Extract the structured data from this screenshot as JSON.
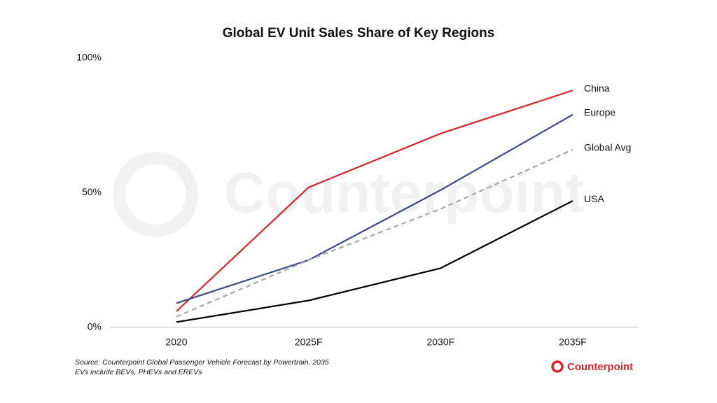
{
  "chart_data": {
    "type": "line",
    "title": "Global EV Unit Sales Share of Key Regions",
    "categories": [
      "2020",
      "2025F",
      "2030F",
      "2035F"
    ],
    "series": [
      {
        "name": "China",
        "color": "#d8262c",
        "dashed": false,
        "values": [
          6,
          52,
          72,
          88
        ]
      },
      {
        "name": "Europe",
        "color": "#3b4a86",
        "dashed": false,
        "values": [
          9,
          25,
          51,
          79
        ]
      },
      {
        "name": "Global Avg",
        "color": "#a6a6a6",
        "dashed": true,
        "values": [
          4,
          25,
          44,
          66
        ]
      },
      {
        "name": "USA",
        "color": "#000000",
        "dashed": false,
        "values": [
          2,
          10,
          22,
          47
        ]
      }
    ],
    "ylim": [
      0,
      100
    ],
    "yticks": [
      {
        "value": 0,
        "label": "0%"
      },
      {
        "value": 50,
        "label": "50%"
      },
      {
        "value": 100,
        "label": "100%"
      }
    ],
    "grid": false,
    "source": "Source: Counterpoint Global Passenger Vehicle Forecast by Powertrain, 2035",
    "note": "EVs include BEVs, PHEVs and EREVs"
  },
  "watermark": "Counterpoint",
  "brand": "Counterpoint"
}
